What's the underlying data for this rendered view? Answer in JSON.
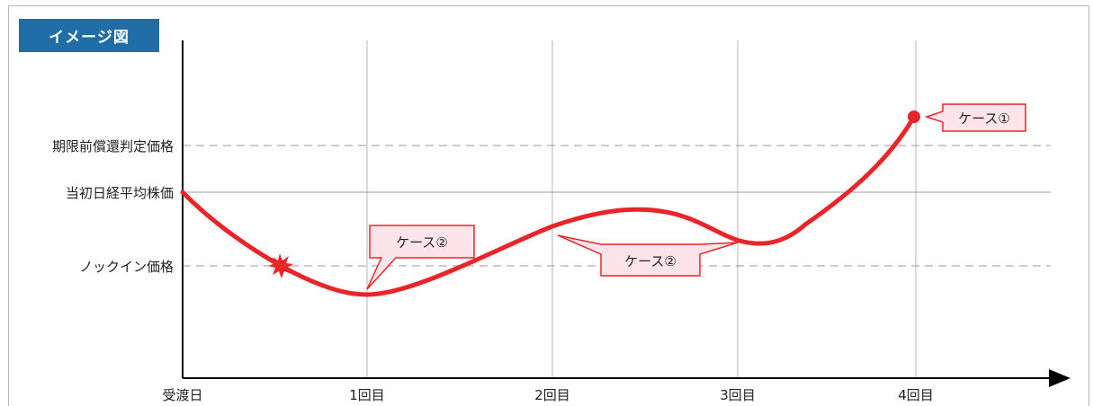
{
  "title": "イメージ図",
  "y_labels": {
    "early_redemption": "期限前償還判定価格",
    "initial": "当初日経平均株価",
    "knock_in": "ノックイン価格"
  },
  "x_labels": [
    "受渡日",
    "1回目",
    "2回目",
    "3回目",
    "4回目"
  ],
  "callouts": {
    "case1": "ケース①",
    "case2_left": "ケース②",
    "case2_right": "ケース②"
  },
  "colors": {
    "curve": "#e8262a",
    "callout_fill": "#fde3ea",
    "callout_border": "#e8262a",
    "badge": "#1f6ea8"
  }
}
